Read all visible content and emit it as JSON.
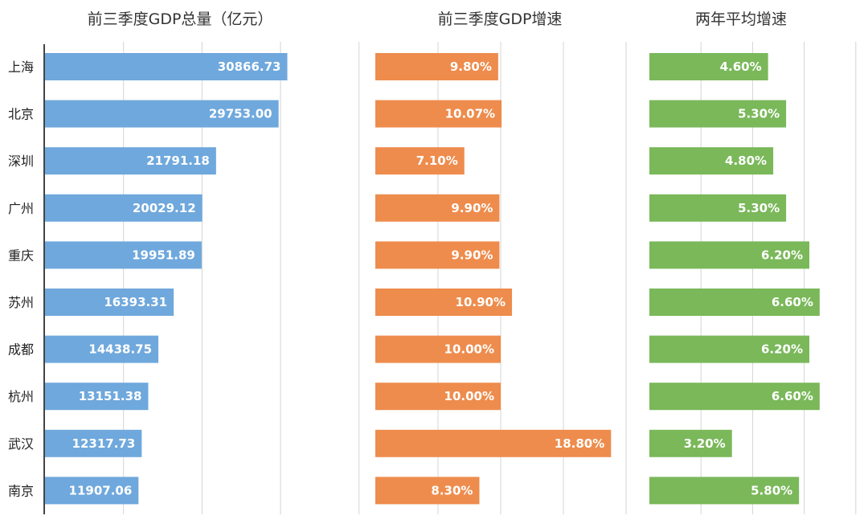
{
  "chart_data": [
    {
      "type": "bar",
      "orientation": "horizontal",
      "title": "前三季度GDP总量（亿元）",
      "categories": [
        "上海",
        "北京",
        "深圳",
        "广州",
        "重庆",
        "苏州",
        "成都",
        "杭州",
        "武汉",
        "南京"
      ],
      "values": [
        30866.73,
        29753.0,
        21791.18,
        20029.12,
        19951.89,
        16393.31,
        14438.75,
        13151.38,
        12317.73,
        11907.06
      ],
      "labels": [
        "30866.73",
        "29753.00",
        "21791.18",
        "20029.12",
        "19951.89",
        "16393.31",
        "14438.75",
        "13151.38",
        "12317.73",
        "11907.06"
      ],
      "xlim": [
        0,
        40000
      ],
      "grid": true,
      "color": "#6fa8dc"
    },
    {
      "type": "bar",
      "orientation": "horizontal",
      "title": "前三季度GDP增速",
      "categories": [
        "上海",
        "北京",
        "深圳",
        "广州",
        "重庆",
        "苏州",
        "成都",
        "杭州",
        "武汉",
        "南京"
      ],
      "values": [
        9.8,
        10.07,
        7.1,
        9.9,
        9.9,
        10.9,
        10.0,
        10.0,
        18.8,
        8.3
      ],
      "labels": [
        "9.80%",
        "10.07%",
        "7.10%",
        "9.90%",
        "9.90%",
        "10.90%",
        "10.00%",
        "10.00%",
        "18.80%",
        "8.30%"
      ],
      "xlim": [
        0,
        20
      ],
      "grid": true,
      "color": "#ee8c4d"
    },
    {
      "type": "bar",
      "orientation": "horizontal",
      "title": "两年平均增速",
      "categories": [
        "上海",
        "北京",
        "深圳",
        "广州",
        "重庆",
        "苏州",
        "成都",
        "杭州",
        "武汉",
        "南京"
      ],
      "values": [
        4.6,
        5.3,
        4.8,
        5.3,
        6.2,
        6.6,
        6.2,
        6.6,
        3.2,
        5.8
      ],
      "labels": [
        "4.60%",
        "5.30%",
        "4.80%",
        "5.30%",
        "6.20%",
        "6.60%",
        "6.20%",
        "6.60%",
        "3.20%",
        "5.80%"
      ],
      "xlim": [
        0,
        8
      ],
      "grid": true,
      "color": "#7ab85a"
    }
  ]
}
